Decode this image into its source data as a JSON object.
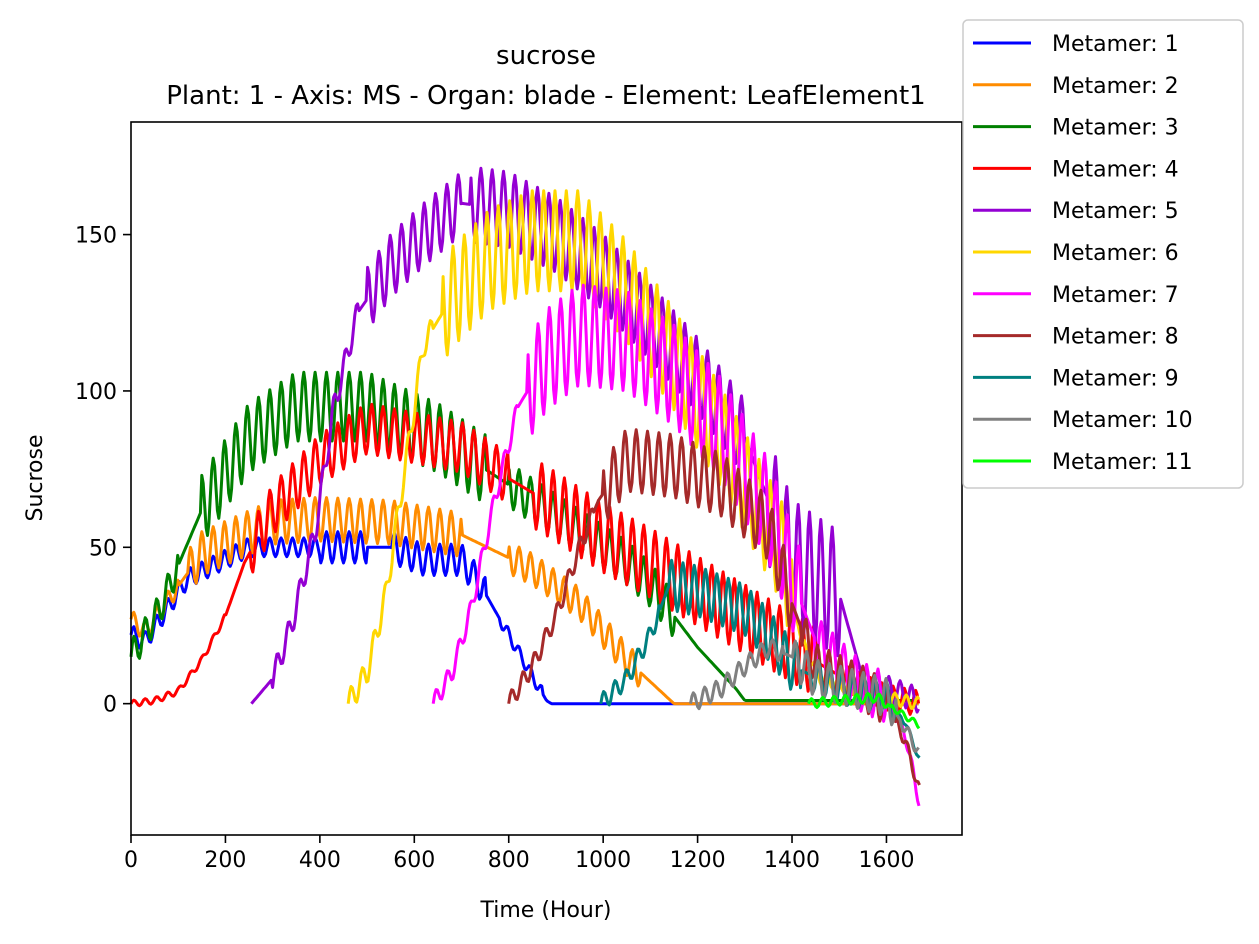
{
  "chart_data": {
    "type": "line",
    "title": "sucrose",
    "subtitle": "Plant: 1 - Axis: MS - Organ: blade - Element: LeafElement1",
    "xlabel": "Time (Hour)",
    "ylabel": "Sucrose",
    "xlim": [
      0,
      1760
    ],
    "ylim": [
      -42,
      186
    ],
    "xticks": [
      0,
      200,
      400,
      600,
      800,
      1000,
      1200,
      1400,
      1600
    ],
    "yticks": [
      0,
      50,
      100,
      150
    ],
    "grid": false,
    "legend_position": "top-right (outside)",
    "series": [
      {
        "name": "Metamer: 1",
        "color": "#0000ff",
        "t0": 0,
        "t1": 1670,
        "points": [
          [
            0,
            22
          ],
          [
            30,
            20
          ],
          [
            120,
            40
          ],
          [
            250,
            50
          ],
          [
            400,
            50
          ],
          [
            550,
            50
          ],
          [
            620,
            46
          ],
          [
            700,
            46
          ],
          [
            740,
            38
          ],
          [
            800,
            22
          ],
          [
            880,
            1
          ],
          [
            890,
            0
          ],
          [
            1670,
            0
          ]
        ],
        "osc": [
          [
            0,
            400,
            3
          ],
          [
            100,
            500,
            5
          ],
          [
            550,
            750,
            5
          ],
          [
            780,
            870,
            2
          ],
          [
            900,
            1670,
            0
          ]
        ]
      },
      {
        "name": "Metamer: 2",
        "color": "#ff8c00",
        "t0": 0,
        "t1": 1670,
        "points": [
          [
            0,
            27
          ],
          [
            30,
            23
          ],
          [
            150,
            48
          ],
          [
            300,
            58
          ],
          [
            400,
            59
          ],
          [
            550,
            58
          ],
          [
            700,
            54
          ],
          [
            850,
            43
          ],
          [
            950,
            32
          ],
          [
            1050,
            14
          ],
          [
            1100,
            7
          ],
          [
            1150,
            0
          ],
          [
            1670,
            0
          ]
        ],
        "osc": [
          [
            0,
            100,
            3
          ],
          [
            120,
            700,
            7
          ],
          [
            800,
            1080,
            5
          ],
          [
            1120,
            1670,
            0
          ]
        ]
      },
      {
        "name": "Metamer: 3",
        "color": "#008000",
        "t0": 0,
        "t1": 1670,
        "points": [
          [
            0,
            15
          ],
          [
            60,
            30
          ],
          [
            150,
            62
          ],
          [
            250,
            85
          ],
          [
            350,
            95
          ],
          [
            500,
            95
          ],
          [
            650,
            85
          ],
          [
            800,
            70
          ],
          [
            900,
            60
          ],
          [
            950,
            55
          ],
          [
            1050,
            45
          ],
          [
            1100,
            38
          ],
          [
            1200,
            18
          ],
          [
            1280,
            5
          ],
          [
            1300,
            1
          ],
          [
            1670,
            1
          ]
        ],
        "osc": [
          [
            0,
            100,
            5
          ],
          [
            150,
            750,
            11
          ],
          [
            800,
            1150,
            7
          ],
          [
            1200,
            1670,
            0
          ]
        ]
      },
      {
        "name": "Metamer: 4",
        "color": "#ff0000",
        "t0": 0,
        "t1": 1670,
        "points": [
          [
            0,
            0
          ],
          [
            50,
            1
          ],
          [
            100,
            4
          ],
          [
            150,
            14
          ],
          [
            200,
            28
          ],
          [
            240,
            45
          ],
          [
            300,
            62
          ],
          [
            400,
            78
          ],
          [
            500,
            88
          ],
          [
            600,
            85
          ],
          [
            700,
            82
          ],
          [
            800,
            72
          ],
          [
            900,
            63
          ],
          [
            1000,
            53
          ],
          [
            1100,
            45
          ],
          [
            1200,
            36
          ],
          [
            1300,
            27
          ],
          [
            1400,
            18
          ],
          [
            1500,
            9
          ],
          [
            1600,
            2
          ],
          [
            1670,
            0
          ]
        ],
        "osc": [
          [
            0,
            200,
            1
          ],
          [
            250,
            800,
            8
          ],
          [
            850,
            1450,
            11
          ],
          [
            1500,
            1670,
            4
          ]
        ]
      },
      {
        "name": "Metamer: 5",
        "color": "#9400d3",
        "t0": 255,
        "t1": 1670,
        "points": [
          [
            255,
            0
          ],
          [
            300,
            8
          ],
          [
            340,
            25
          ],
          [
            390,
            55
          ],
          [
            430,
            95
          ],
          [
            480,
            125
          ],
          [
            550,
            140
          ],
          [
            620,
            150
          ],
          [
            700,
            160
          ],
          [
            800,
            158
          ],
          [
            900,
            150
          ],
          [
            1000,
            138
          ],
          [
            1100,
            122
          ],
          [
            1200,
            105
          ],
          [
            1300,
            85
          ],
          [
            1400,
            45
          ],
          [
            1500,
            35
          ],
          [
            1550,
            8
          ],
          [
            1600,
            5
          ],
          [
            1670,
            1
          ]
        ],
        "osc": [
          [
            300,
            480,
            4
          ],
          [
            500,
            700,
            10
          ],
          [
            720,
            1300,
            12
          ],
          [
            1350,
            1500,
            20
          ],
          [
            1550,
            1670,
            4
          ]
        ]
      },
      {
        "name": "Metamer: 6",
        "color": "#ffd700",
        "t0": 460,
        "t1": 1670,
        "points": [
          [
            460,
            0
          ],
          [
            500,
            10
          ],
          [
            540,
            35
          ],
          [
            580,
            75
          ],
          [
            620,
            115
          ],
          [
            680,
            130
          ],
          [
            760,
            142
          ],
          [
            850,
            148
          ],
          [
            950,
            148
          ],
          [
            1050,
            132
          ],
          [
            1150,
            110
          ],
          [
            1250,
            85
          ],
          [
            1320,
            65
          ],
          [
            1380,
            48
          ],
          [
            1420,
            20
          ],
          [
            1460,
            8
          ],
          [
            1560,
            3
          ],
          [
            1670,
            0
          ]
        ],
        "osc": [
          [
            460,
            640,
            4
          ],
          [
            660,
            1400,
            16
          ],
          [
            1420,
            1670,
            2
          ]
        ]
      },
      {
        "name": "Metamer: 7",
        "color": "#ff00ff",
        "t0": 640,
        "t1": 1670,
        "points": [
          [
            640,
            0
          ],
          [
            680,
            10
          ],
          [
            720,
            30
          ],
          [
            770,
            65
          ],
          [
            820,
            95
          ],
          [
            880,
            110
          ],
          [
            950,
            118
          ],
          [
            1050,
            116
          ],
          [
            1150,
            105
          ],
          [
            1250,
            88
          ],
          [
            1350,
            62
          ],
          [
            1400,
            40
          ],
          [
            1450,
            20
          ],
          [
            1550,
            5
          ],
          [
            1600,
            2
          ],
          [
            1640,
            -10
          ],
          [
            1670,
            -32
          ]
        ],
        "osc": [
          [
            640,
            820,
            3
          ],
          [
            840,
            1420,
            16
          ],
          [
            1450,
            1600,
            8
          ],
          [
            1620,
            1670,
            2
          ]
        ]
      },
      {
        "name": "Metamer: 8",
        "color": "#a52a2a",
        "t0": 800,
        "t1": 1670,
        "points": [
          [
            800,
            0
          ],
          [
            850,
            12
          ],
          [
            900,
            28
          ],
          [
            950,
            50
          ],
          [
            990,
            65
          ],
          [
            1050,
            78
          ],
          [
            1150,
            76
          ],
          [
            1250,
            70
          ],
          [
            1350,
            56
          ],
          [
            1400,
            32
          ],
          [
            1450,
            12
          ],
          [
            1550,
            5
          ],
          [
            1600,
            0
          ],
          [
            1640,
            -12
          ],
          [
            1670,
            -28
          ]
        ],
        "osc": [
          [
            800,
            980,
            3
          ],
          [
            1000,
            1400,
            10
          ],
          [
            1420,
            1600,
            7
          ],
          [
            1620,
            1670,
            2
          ]
        ]
      },
      {
        "name": "Metamer: 9",
        "color": "#008080",
        "t0": 995,
        "t1": 1670,
        "points": [
          [
            995,
            0
          ],
          [
            1050,
            8
          ],
          [
            1100,
            22
          ],
          [
            1140,
            38
          ],
          [
            1200,
            36
          ],
          [
            1300,
            30
          ],
          [
            1350,
            22
          ],
          [
            1400,
            12
          ],
          [
            1500,
            5
          ],
          [
            1600,
            2
          ],
          [
            1640,
            -6
          ],
          [
            1670,
            -18
          ]
        ],
        "osc": [
          [
            995,
            1120,
            3
          ],
          [
            1140,
            1420,
            8
          ],
          [
            1440,
            1620,
            5
          ],
          [
            1630,
            1670,
            1
          ]
        ]
      },
      {
        "name": "Metamer: 10",
        "color": "#808080",
        "t0": 1185,
        "t1": 1670,
        "points": [
          [
            1185,
            0
          ],
          [
            1250,
            5
          ],
          [
            1300,
            12
          ],
          [
            1350,
            18
          ],
          [
            1400,
            15
          ],
          [
            1450,
            8
          ],
          [
            1550,
            4
          ],
          [
            1600,
            2
          ],
          [
            1640,
            -8
          ],
          [
            1670,
            -16
          ]
        ],
        "osc": [
          [
            1185,
            1380,
            3
          ],
          [
            1400,
            1620,
            6
          ],
          [
            1630,
            1670,
            2
          ]
        ]
      },
      {
        "name": "Metamer: 11",
        "color": "#00ff00",
        "t0": 1435,
        "t1": 1670,
        "points": [
          [
            1435,
            0
          ],
          [
            1500,
            1
          ],
          [
            1580,
            2
          ],
          [
            1620,
            -2
          ],
          [
            1670,
            -7
          ]
        ],
        "osc": [
          [
            1435,
            1600,
            1.5
          ],
          [
            1610,
            1670,
            1
          ]
        ]
      }
    ]
  }
}
